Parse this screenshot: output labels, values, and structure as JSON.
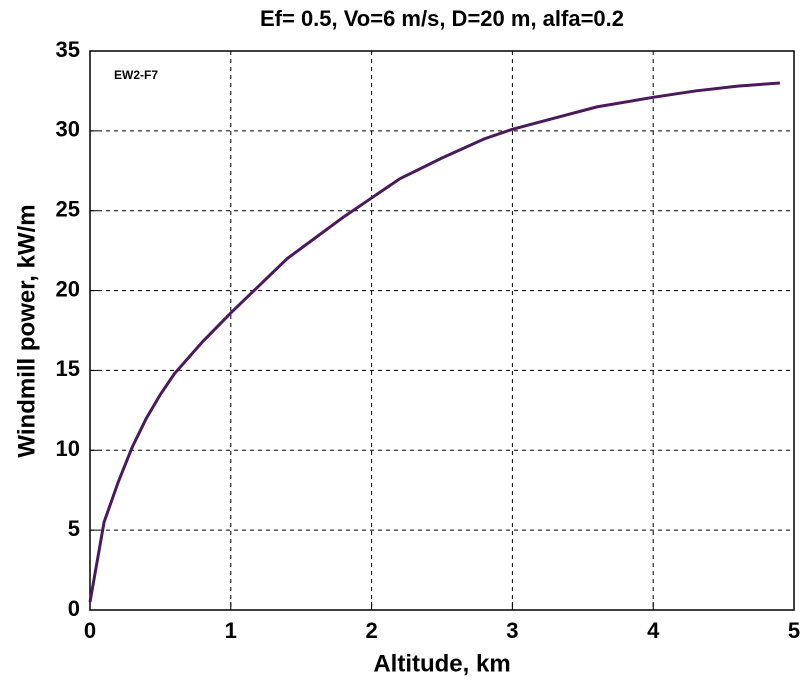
{
  "chart_data": {
    "type": "line",
    "title": "Ef= 0.5, Vo=6 m/s, D=20 m, alfa=0.2",
    "xlabel": "Altitude, km",
    "ylabel": "Windmill power, kW/m",
    "annotation": "EW2-F7",
    "x": [
      0,
      0.1,
      0.2,
      0.3,
      0.4,
      0.5,
      0.6,
      0.8,
      1.0,
      1.2,
      1.4,
      1.6,
      1.8,
      2.0,
      2.2,
      2.5,
      2.8,
      3.0,
      3.3,
      3.6,
      4.0,
      4.3,
      4.6,
      4.9
    ],
    "values": [
      0.5,
      5.5,
      8,
      10.2,
      12,
      13.5,
      14.8,
      16.8,
      18.6,
      20.3,
      22,
      23.3,
      24.6,
      25.8,
      27,
      28.3,
      29.5,
      30.1,
      30.8,
      31.5,
      32.1,
      32.5,
      32.8,
      33
    ],
    "color": "#4b1a5c",
    "xlim": [
      0,
      5
    ],
    "ylim": [
      0,
      35
    ],
    "xticks": [
      0,
      1,
      2,
      3,
      4,
      5
    ],
    "yticks": [
      0,
      5,
      10,
      15,
      20,
      25,
      30,
      35
    ],
    "grid": true
  }
}
